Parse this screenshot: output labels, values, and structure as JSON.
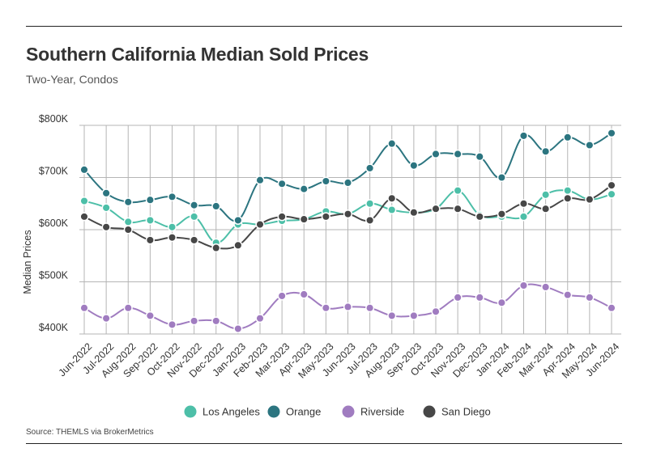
{
  "title": "Southern California Median Sold Prices",
  "subtitle": "Two-Year, Condos",
  "source": "Source:  THEMLS via BrokerMetrics",
  "colors": {
    "Los Angeles": "#4dbfa8",
    "Orange": "#2c7580",
    "Riverside": "#a07cc0",
    "San Diego": "#474747"
  },
  "chart_data": {
    "type": "line",
    "ylabel": "Median Prices",
    "ylim": [
      400,
      800
    ],
    "y_ticks": [
      400,
      500,
      600,
      700,
      800
    ],
    "y_tick_labels": [
      "$400K",
      "$500K",
      "$600K",
      "$700K",
      "$800K"
    ],
    "grid": true,
    "legend_position": "bottom-center",
    "categories": [
      "Jun-2022",
      "Jul-2022",
      "Aug-2022",
      "Sep-2022",
      "Oct-2022",
      "Nov-2022",
      "Dec-2022",
      "Jan-2023",
      "Feb-2023",
      "Mar-2023",
      "Apr-2023",
      "May-2023",
      "Jun-2023",
      "Jul-2023",
      "Aug-2023",
      "Sep-2023",
      "Oct-2023",
      "Nov-2023",
      "Dec-2023",
      "Jan-2024",
      "Feb-2024",
      "Mar-2024",
      "Apr-2024",
      "May-2024",
      "Jun-2024"
    ],
    "series": [
      {
        "name": "Los Angeles",
        "values": [
          655,
          642,
          615,
          618,
          605,
          625,
          575,
          610,
          610,
          617,
          620,
          635,
          630,
          650,
          638,
          633,
          640,
          675,
          628,
          625,
          625,
          667,
          675,
          658,
          668
        ]
      },
      {
        "name": "Orange",
        "values": [
          715,
          670,
          653,
          657,
          663,
          647,
          645,
          618,
          695,
          688,
          678,
          693,
          690,
          718,
          765,
          723,
          745,
          745,
          740,
          700,
          780,
          750,
          777,
          762,
          785
        ]
      },
      {
        "name": "Riverside",
        "values": [
          450,
          430,
          450,
          435,
          418,
          425,
          425,
          410,
          430,
          473,
          476,
          450,
          452,
          450,
          435,
          435,
          443,
          470,
          470,
          460,
          493,
          490,
          475,
          470,
          450
        ]
      },
      {
        "name": "San Diego",
        "values": [
          625,
          605,
          600,
          580,
          585,
          580,
          565,
          570,
          610,
          625,
          620,
          625,
          630,
          618,
          660,
          633,
          640,
          640,
          625,
          630,
          650,
          640,
          660,
          658,
          685
        ]
      }
    ]
  }
}
